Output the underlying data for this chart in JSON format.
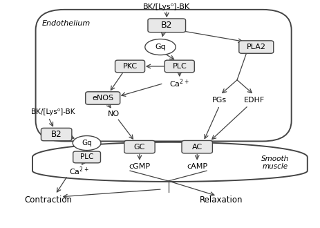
{
  "bg_color": "#ffffff",
  "text_color": "#000000",
  "box_fc": "#e8e8e8",
  "box_ec": "#444444",
  "cell_ec": "#444444",
  "top_label": "BK/[Lys⁰]-BK",
  "left_label": "BK/[Lys⁰]-BK",
  "endothelium_label": "Endothelium",
  "smooth_muscle_label": "Smooth\nmuscle",
  "figsize": [
    4.64,
    3.3
  ],
  "dpi": 100
}
